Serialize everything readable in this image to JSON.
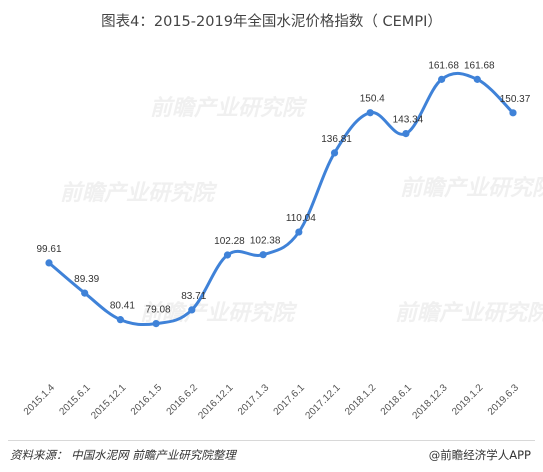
{
  "title": "图表4：2015-2019年全国水泥价格指数（ CEMPI）",
  "footer": {
    "source": "资料来源： 中国水泥网  前瞻产业研究院整理",
    "brand": "@前瞻经济学人APP"
  },
  "watermark": "前瞻产业研究院",
  "chart_data": {
    "type": "line",
    "title": "图表4：2015-2019年全国水泥价格指数（ CEMPI）",
    "xlabel": "",
    "ylabel": "",
    "categories": [
      "2015.1.4",
      "2015.6.1",
      "2015.12.1",
      "2016.1.5",
      "2016.6.2",
      "2016.12.1",
      "2017.1.3",
      "2017.6.1",
      "2017.12.1",
      "2018.1.2",
      "2018.6.1",
      "2018.12.3",
      "2019.1.2",
      "2019.6.3"
    ],
    "values": [
      99.61,
      89.39,
      80.41,
      79.08,
      83.71,
      102.28,
      102.38,
      110.04,
      136.81,
      150.4,
      143.34,
      161.68,
      161.68,
      150.37
    ],
    "ylim": [
      60,
      175
    ],
    "grid": false,
    "legend": "none",
    "color": "#3f82d8"
  }
}
